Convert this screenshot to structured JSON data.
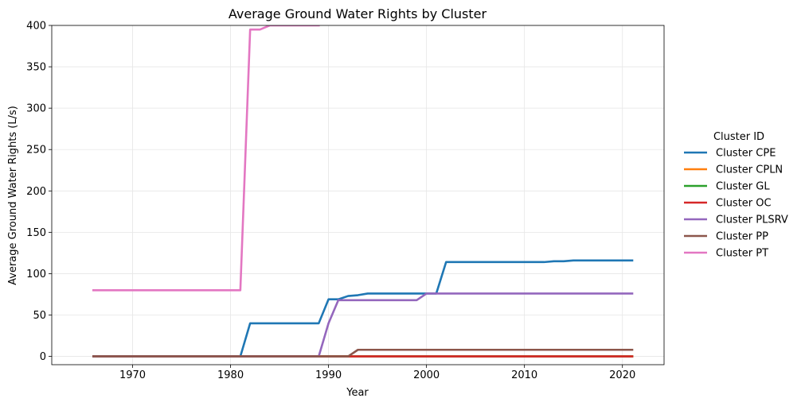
{
  "chart_data": {
    "type": "line",
    "title": "Average Ground Water Rights by Cluster",
    "xlabel": "Year",
    "ylabel": "Average Ground Water Rights (L/s)",
    "xlim": [
      1961.75,
      2024.25
    ],
    "ylim": [
      -10,
      400
    ],
    "xticks": [
      1970,
      1980,
      1990,
      2000,
      2010,
      2020
    ],
    "yticks": [
      0,
      50,
      100,
      150,
      200,
      250,
      300,
      350,
      400
    ],
    "grid": true,
    "legend": {
      "title": "Cluster ID",
      "placement": "right"
    },
    "series": [
      {
        "name": "Cluster CPE",
        "color": "#1f77b4",
        "points": [
          [
            1966,
            0
          ],
          [
            1981,
            0
          ],
          [
            1982,
            40
          ],
          [
            1989,
            40
          ],
          [
            1990,
            69
          ],
          [
            1991,
            69
          ],
          [
            1992,
            73
          ],
          [
            1993,
            74
          ],
          [
            1994,
            76
          ],
          [
            2001,
            76
          ],
          [
            2002,
            114
          ],
          [
            2012,
            114
          ],
          [
            2013,
            115
          ],
          [
            2014,
            115
          ],
          [
            2015,
            116
          ],
          [
            2021,
            116
          ]
        ]
      },
      {
        "name": "Cluster CPLN",
        "color": "#ff7f0e",
        "points": [
          [
            1966,
            0
          ],
          [
            2021,
            0
          ]
        ]
      },
      {
        "name": "Cluster GL",
        "color": "#2ca02c",
        "points": [
          [
            1966,
            0
          ],
          [
            2021,
            0
          ]
        ]
      },
      {
        "name": "Cluster OC",
        "color": "#d62728",
        "points": [
          [
            1966,
            0
          ],
          [
            2021,
            0
          ]
        ]
      },
      {
        "name": "Cluster PLSRV",
        "color": "#9467bd",
        "points": [
          [
            1966,
            0
          ],
          [
            1989,
            0
          ],
          [
            1990,
            40
          ],
          [
            1991,
            68
          ],
          [
            1999,
            68
          ],
          [
            2000,
            76
          ],
          [
            2021,
            76
          ]
        ]
      },
      {
        "name": "Cluster PP",
        "color": "#8c564b",
        "points": [
          [
            1966,
            0
          ],
          [
            1992,
            0
          ],
          [
            1993,
            8
          ],
          [
            2021,
            8
          ]
        ]
      },
      {
        "name": "Cluster PT",
        "color": "#e377c2",
        "points": [
          [
            1966,
            80
          ],
          [
            1981,
            80
          ],
          [
            1982,
            395
          ],
          [
            1983,
            395
          ],
          [
            1984,
            400
          ],
          [
            1989,
            400
          ]
        ]
      }
    ]
  }
}
